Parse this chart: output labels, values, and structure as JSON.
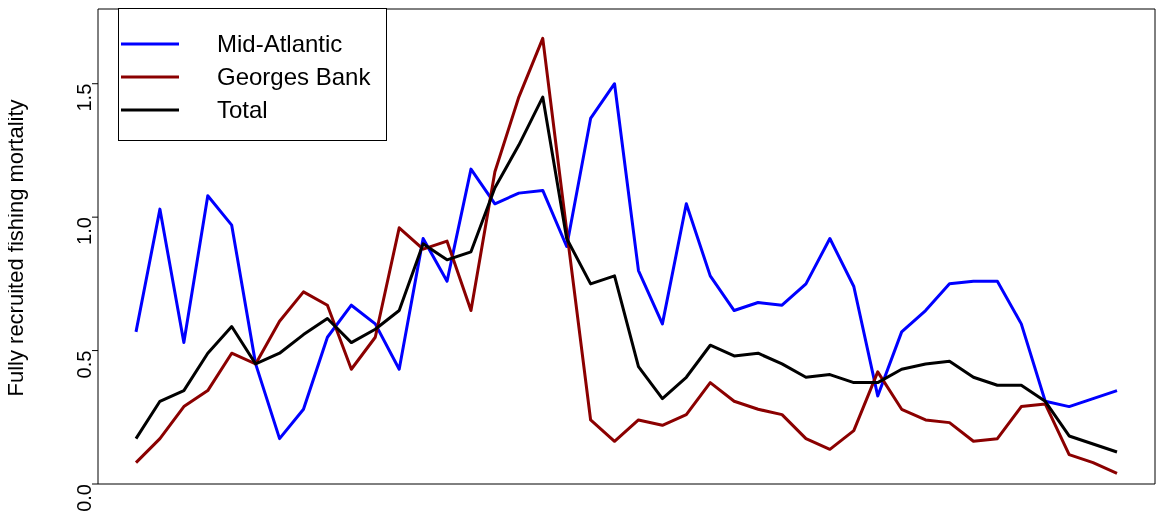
{
  "chart_data": {
    "type": "line",
    "ylabel": "Fully recruited fishing mortality",
    "categories": [
      null,
      null,
      null,
      null,
      null,
      null,
      null,
      null,
      null,
      null,
      null,
      null,
      null,
      null,
      null,
      null,
      null,
      null,
      null,
      null,
      null,
      null,
      null,
      null,
      null,
      null,
      null,
      null,
      null,
      null,
      null,
      null,
      null,
      null,
      null,
      null,
      null,
      null,
      null,
      null,
      null,
      null
    ],
    "series": [
      {
        "name": "Mid-Atlantic",
        "color": "#0000ff",
        "values": [
          0.57,
          1.03,
          0.53,
          1.08,
          0.97,
          0.45,
          0.17,
          0.28,
          0.55,
          0.67,
          0.6,
          0.43,
          0.92,
          0.76,
          1.18,
          1.05,
          1.09,
          1.1,
          0.89,
          1.37,
          1.5,
          0.8,
          0.6,
          1.05,
          0.78,
          0.65,
          0.68,
          0.67,
          0.75,
          0.92,
          0.74,
          0.33,
          0.57,
          0.65,
          0.75,
          0.76,
          0.76,
          0.6,
          0.31,
          0.29,
          0.32,
          0.35
        ]
      },
      {
        "name": "Georges Bank",
        "color": "#8b0000",
        "values": [
          0.08,
          0.17,
          0.29,
          0.35,
          0.49,
          0.45,
          0.61,
          0.72,
          0.67,
          0.43,
          0.55,
          0.96,
          0.88,
          0.91,
          0.65,
          1.17,
          1.45,
          1.67,
          0.95,
          0.24,
          0.16,
          0.24,
          0.22,
          0.26,
          0.38,
          0.31,
          0.28,
          0.26,
          0.17,
          0.13,
          0.2,
          0.42,
          0.28,
          0.24,
          0.23,
          0.16,
          0.17,
          0.29,
          0.3,
          0.11,
          0.08,
          0.04
        ]
      },
      {
        "name": "Total",
        "color": "#000000",
        "values": [
          0.17,
          0.31,
          0.35,
          0.49,
          0.59,
          0.45,
          0.49,
          0.56,
          0.62,
          0.53,
          0.58,
          0.65,
          0.9,
          0.84,
          0.87,
          1.11,
          1.27,
          1.45,
          0.92,
          0.75,
          0.78,
          0.44,
          0.32,
          0.4,
          0.52,
          0.48,
          0.49,
          0.45,
          0.4,
          0.41,
          0.38,
          0.38,
          0.43,
          0.45,
          0.46,
          0.4,
          0.37,
          0.37,
          0.31,
          0.18,
          0.15,
          0.12
        ]
      }
    ],
    "ylim": [
      0,
      1.78
    ],
    "yticks": [
      {
        "value": 0,
        "label": "0.0"
      },
      {
        "value": 0.5,
        "label": "0.5"
      },
      {
        "value": 1,
        "label": "1.0"
      },
      {
        "value": 1.5,
        "label": "1.5"
      }
    ],
    "tick_labels": "y",
    "legend": "top left",
    "grid": false,
    "marker": "none",
    "line_style": "solid"
  }
}
